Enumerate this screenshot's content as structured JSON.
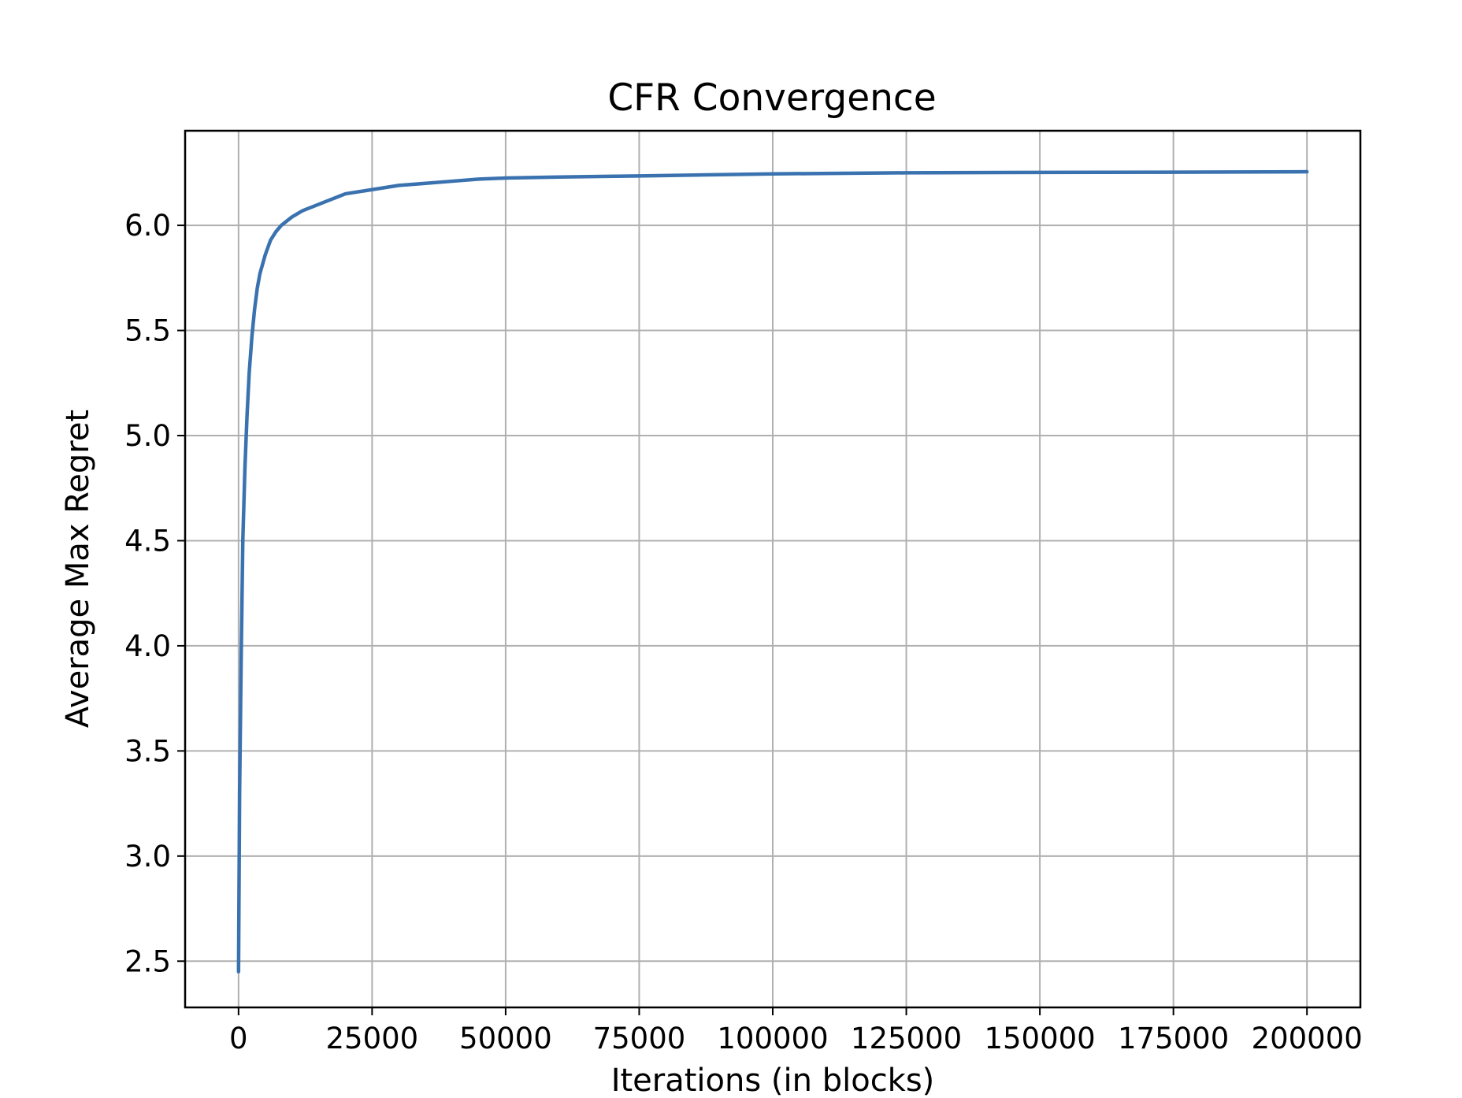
{
  "chart_data": {
    "type": "line",
    "title": "CFR Convergence",
    "xlabel": "Iterations (in blocks)",
    "ylabel": "Average Max Regret",
    "xlim": [
      -10000,
      210000
    ],
    "ylim": [
      2.28,
      6.45
    ],
    "xticks": [
      0,
      25000,
      50000,
      75000,
      100000,
      125000,
      150000,
      175000,
      200000
    ],
    "yticks": [
      2.5,
      3.0,
      3.5,
      4.0,
      4.5,
      5.0,
      5.5,
      6.0
    ],
    "xtick_labels": [
      "0",
      "25000",
      "50000",
      "75000",
      "100000",
      "125000",
      "150000",
      "175000",
      "200000"
    ],
    "ytick_labels": [
      "2.5",
      "3.0",
      "3.5",
      "4.0",
      "4.5",
      "5.0",
      "5.5",
      "6.0"
    ],
    "grid": true,
    "legend": "none",
    "series": [
      {
        "color": "#3a72b0",
        "x": [
          0,
          200,
          500,
          800,
          1200,
          1600,
          2000,
          2500,
          3000,
          3500,
          4000,
          5000,
          6000,
          7000,
          8000,
          10000,
          12000,
          15000,
          17000,
          19000,
          20000,
          25000,
          30000,
          35000,
          40000,
          45000,
          50000,
          60000,
          75000,
          100000,
          125000,
          150000,
          175000,
          200000
        ],
        "y": [
          2.45,
          3.3,
          3.95,
          4.5,
          4.85,
          5.1,
          5.3,
          5.47,
          5.6,
          5.7,
          5.77,
          5.86,
          5.93,
          5.97,
          6.0,
          6.04,
          6.07,
          6.1,
          6.12,
          6.14,
          6.15,
          6.17,
          6.19,
          6.2,
          6.21,
          6.22,
          6.225,
          6.23,
          6.235,
          6.245,
          6.25,
          6.252,
          6.253,
          6.255
        ]
      }
    ]
  }
}
